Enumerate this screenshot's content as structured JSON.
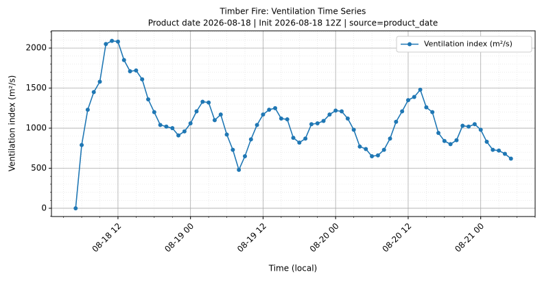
{
  "chart_data": {
    "type": "line",
    "title": "Timber Fire: Ventilation Time Series",
    "subtitle": "Product date 2026-08-18 | Init 2026-08-18 12Z | source=product_date",
    "x_label": "Time (local)",
    "y_label": "Ventilation index (m²/s)",
    "x": [
      "08-18 05",
      "08-18 06",
      "08-18 07",
      "08-18 08",
      "08-18 09",
      "08-18 10",
      "08-18 11",
      "08-18 12",
      "08-18 13",
      "08-18 14",
      "08-18 15",
      "08-18 16",
      "08-18 17",
      "08-18 18",
      "08-18 19",
      "08-18 20",
      "08-18 21",
      "08-18 22",
      "08-18 23",
      "08-19 00",
      "08-19 01",
      "08-19 02",
      "08-19 03",
      "08-19 04",
      "08-19 05",
      "08-19 06",
      "08-19 07",
      "08-19 08",
      "08-19 09",
      "08-19 10",
      "08-19 11",
      "08-19 12",
      "08-19 13",
      "08-19 14",
      "08-19 15",
      "08-19 16",
      "08-19 17",
      "08-19 18",
      "08-19 19",
      "08-19 20",
      "08-19 21",
      "08-19 22",
      "08-19 23",
      "08-20 00",
      "08-20 01",
      "08-20 02",
      "08-20 03",
      "08-20 04",
      "08-20 05",
      "08-20 06",
      "08-20 07",
      "08-20 08",
      "08-20 09",
      "08-20 10",
      "08-20 11",
      "08-20 12",
      "08-20 13",
      "08-20 14",
      "08-20 15",
      "08-20 16",
      "08-20 17",
      "08-20 18",
      "08-20 19",
      "08-20 20",
      "08-20 21",
      "08-20 22",
      "08-20 23",
      "08-21 00",
      "08-21 01",
      "08-21 02",
      "08-21 03",
      "08-21 04",
      "08-21 05"
    ],
    "series": [
      {
        "name": "Ventilation index (m²/s)",
        "color": "#1f77b4",
        "values": [
          0,
          790,
          1230,
          1450,
          1580,
          2050,
          2090,
          2080,
          1850,
          1710,
          1720,
          1610,
          1360,
          1200,
          1040,
          1020,
          1000,
          910,
          960,
          1060,
          1210,
          1330,
          1320,
          1100,
          1170,
          920,
          730,
          480,
          650,
          860,
          1040,
          1170,
          1230,
          1250,
          1120,
          1110,
          880,
          820,
          870,
          1050,
          1060,
          1090,
          1170,
          1220,
          1210,
          1120,
          980,
          770,
          740,
          650,
          660,
          730,
          870,
          1080,
          1210,
          1350,
          1390,
          1480,
          1260,
          1200,
          940,
          840,
          800,
          850,
          1030,
          1020,
          1050,
          980,
          830,
          730,
          720,
          680,
          620
        ]
      }
    ],
    "xlim": [
      "08-18 01",
      "08-21 09"
    ],
    "xticks": [
      "08-18 12",
      "08-19 00",
      "08-19 12",
      "08-20 00",
      "08-20 12",
      "08-21 00"
    ],
    "ylim": [
      -103,
      2215
    ],
    "yticks": [
      0,
      500,
      1000,
      1500,
      2000
    ],
    "grid": true,
    "legend": "upper right"
  }
}
